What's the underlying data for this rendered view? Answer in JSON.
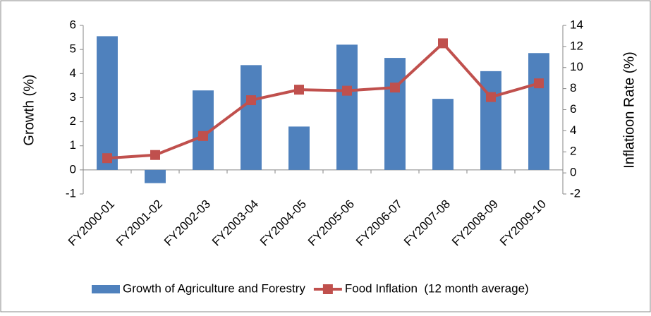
{
  "chart_data": {
    "type": "bar-line",
    "categories": [
      "FY2000-01",
      "FY2001-02",
      "FY2002-03",
      "FY2003-04",
      "FY2004-05",
      "FY2005-06",
      "FY2006-07",
      "FY2007-08",
      "FY2008-09",
      "FY2009-10"
    ],
    "ylabel": "Growth (%)",
    "y2label": "Inflatioon Rate (%)",
    "ylim": [
      -1,
      6
    ],
    "yticks": [
      -1,
      0,
      1,
      2,
      3,
      4,
      5,
      6
    ],
    "y2lim": [
      -2,
      14
    ],
    "y2ticks": [
      -2,
      0,
      2,
      4,
      6,
      8,
      10,
      12,
      14
    ],
    "series": [
      {
        "name": "Growth of Agriculture and Forestry",
        "type": "bar",
        "color": "#4f81bd",
        "values": [
          5.55,
          -0.55,
          3.3,
          4.35,
          1.8,
          5.2,
          4.65,
          2.95,
          4.1,
          4.85
        ]
      },
      {
        "name": "Food Inflation  (12 month average)",
        "type": "line",
        "axis": "y2",
        "color": "#c0504d",
        "values": [
          1.4,
          1.7,
          3.5,
          6.9,
          7.9,
          7.8,
          8.1,
          12.3,
          7.2,
          8.5
        ]
      }
    ],
    "legend": "bottom"
  }
}
